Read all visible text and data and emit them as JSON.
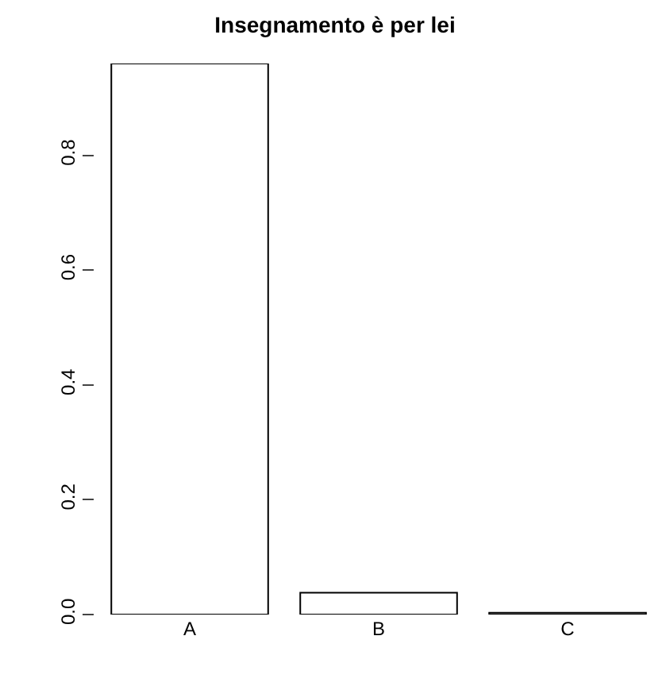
{
  "chart_data": {
    "type": "bar",
    "title": "Insegnamento è per lei",
    "categories": [
      "A",
      "B",
      "C"
    ],
    "values": [
      0.96,
      0.038,
      0.003
    ],
    "color": "#ffffff",
    "ylim": [
      0,
      0.96
    ],
    "yticks": [
      {
        "value": 0,
        "label": "0.0"
      },
      {
        "value": 0.2,
        "label": "0.2"
      },
      {
        "value": 0.4,
        "label": "0.4"
      },
      {
        "value": 0.6,
        "label": "0.6"
      },
      {
        "value": 0.8,
        "label": "0.8"
      }
    ]
  }
}
